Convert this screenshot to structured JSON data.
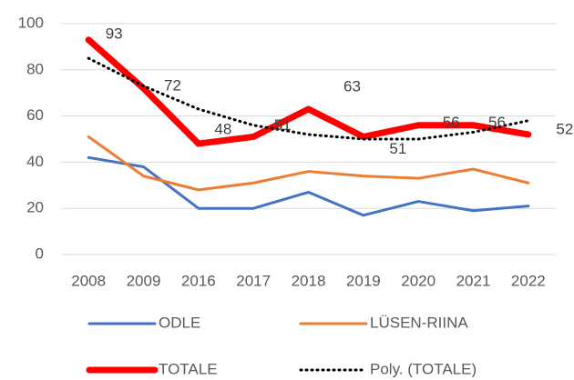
{
  "chart_data": {
    "type": "line",
    "categories": [
      "2008",
      "2009",
      "2016",
      "2017",
      "2018",
      "2019",
      "2020",
      "2021",
      "2022"
    ],
    "series": [
      {
        "name": "ODLE",
        "color": "#4472c4",
        "values": [
          42,
          38,
          20,
          20,
          27,
          17,
          23,
          19,
          21
        ]
      },
      {
        "name": "LÜSEN-RIINA",
        "color": "#ed7d31",
        "values": [
          51,
          34,
          28,
          31,
          36,
          34,
          33,
          37,
          31
        ]
      },
      {
        "name": "TOTALE",
        "color": "#ff0000",
        "values": [
          93,
          72,
          48,
          51,
          63,
          51,
          56,
          56,
          52
        ]
      },
      {
        "name": "Poly. (TOTALE)",
        "color": "#000000",
        "values": [
          85,
          73,
          63,
          56,
          52,
          50,
          50,
          53,
          58
        ]
      }
    ],
    "ylim": [
      0,
      100
    ],
    "yticks": [
      0,
      20,
      40,
      60,
      80,
      100
    ],
    "grid": true
  }
}
